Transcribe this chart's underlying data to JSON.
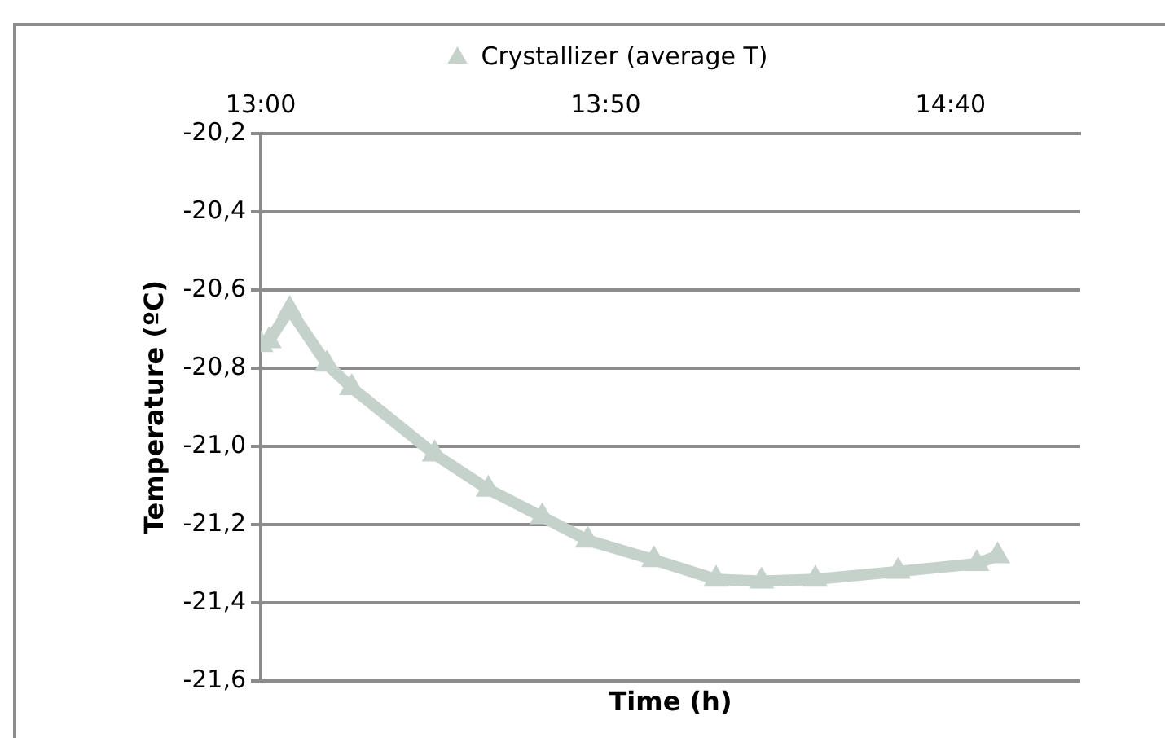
{
  "chart_data": {
    "type": "line",
    "xlabel": "Time (h)",
    "ylabel": "Temperature (ºC)",
    "xlim": [
      13,
      14.98
    ],
    "xticks": [
      {
        "value": 13,
        "label": "13:00"
      },
      {
        "value": 13.8333,
        "label": "13:50"
      },
      {
        "value": 14.6667,
        "label": "14:40"
      }
    ],
    "ylim": [
      -21.6,
      -20.2
    ],
    "yticks": [
      {
        "value": -21.6,
        "label": "-21,6"
      },
      {
        "value": -21.4,
        "label": "-21,4"
      },
      {
        "value": -21.2,
        "label": "-21,2"
      },
      {
        "value": -21.0,
        "label": "-21,0"
      },
      {
        "value": -20.8,
        "label": "-20,8"
      },
      {
        "value": -20.6,
        "label": "-20,6"
      },
      {
        "value": -20.4,
        "label": "-20,4"
      },
      {
        "value": -20.2,
        "label": "-20,2"
      }
    ],
    "grid": "y",
    "legend": "top",
    "marker": "triangle",
    "line_style": "solid",
    "series": [
      {
        "name": "Crystallizer (average T)",
        "color": "#c5d1cb",
        "x": [
          13.0,
          13.02,
          13.07,
          13.16,
          13.22,
          13.42,
          13.55,
          13.68,
          13.79,
          13.95,
          14.1,
          14.21,
          14.34,
          14.54,
          14.73,
          14.78
        ],
        "values": [
          -20.74,
          -20.73,
          -20.65,
          -20.79,
          -20.85,
          -21.02,
          -21.11,
          -21.18,
          -21.24,
          -21.29,
          -21.34,
          -21.345,
          -21.34,
          -21.32,
          -21.3,
          -21.28
        ]
      }
    ]
  }
}
